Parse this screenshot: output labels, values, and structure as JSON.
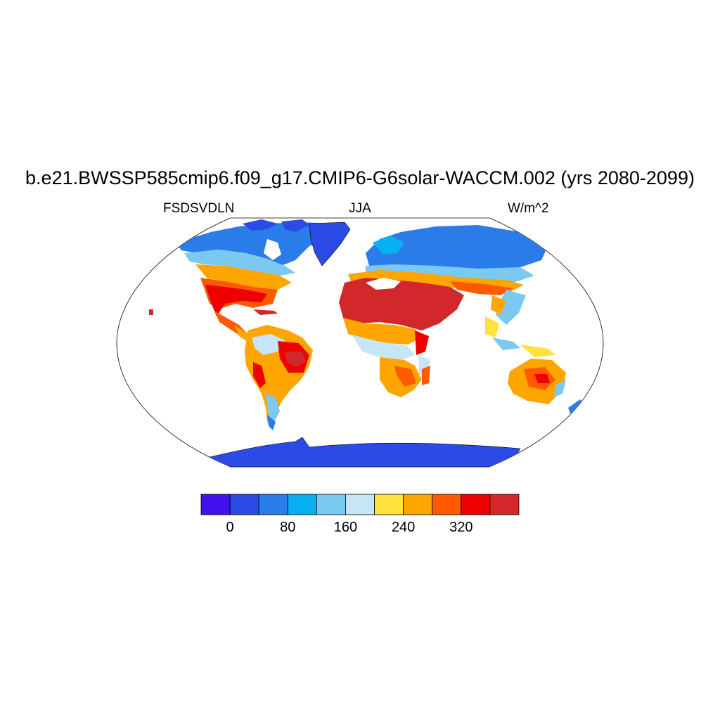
{
  "title": "b.e21.BWSSP585cmip6.f09_g17.CMIP6-G6solar-WACCM.002 (yrs 2080-2099)",
  "variable": "FSDSVDLN",
  "season": "JJA",
  "units": "W/m^2",
  "map": {
    "projection": "robinson",
    "land_fill_by_region": [
      {
        "region": "Greenland",
        "color": "#2b4ae6"
      },
      {
        "region": "Antarctica",
        "color": "#2b4ae6"
      },
      {
        "region": "Arctic Canada",
        "color": "#2a7de9"
      },
      {
        "region": "Northern Eurasia",
        "color": "#2a7de9"
      },
      {
        "region": "Southern United States / Mexico",
        "color": "#ee0000"
      },
      {
        "region": "Sahara / Arabia",
        "color": "#d2282c"
      },
      {
        "region": "Amazon",
        "color": "#c6e6f7"
      },
      {
        "region": "Australia",
        "color": "#ffa500"
      }
    ]
  },
  "colorbar": {
    "colors": [
      "#4310f0",
      "#2b4ae6",
      "#2a7de9",
      "#07b0f3",
      "#7bc9f0",
      "#c6e6f7",
      "#ffe23c",
      "#ffa500",
      "#ff5a00",
      "#ee0000",
      "#d2282c"
    ],
    "labels": [
      "0",
      "80",
      "160",
      "240",
      "320"
    ]
  }
}
